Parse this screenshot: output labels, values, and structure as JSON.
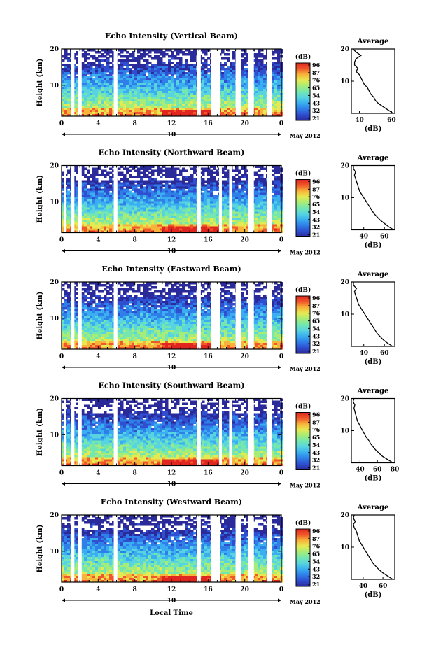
{
  "colors": {
    "colormap": [
      "#2a2a9a",
      "#2f4fd0",
      "#2f7fe8",
      "#3aaef0",
      "#57d4e0",
      "#74e7b0",
      "#a6ec78",
      "#e6ea52",
      "#f7b33a",
      "#f0572a",
      "#e0261e"
    ],
    "gap": "#ffffff",
    "axis": "#000000"
  },
  "footer": {
    "xlabel": "Local Time"
  },
  "chart_data": [
    {
      "type": "heatmap",
      "title": "Echo Intensity (Vertical Beam)",
      "ylabel": "Height (km)",
      "yticks": [
        10,
        20
      ],
      "ylim": [
        1.5,
        20
      ],
      "xticks": [
        "0",
        "4",
        "8",
        "12",
        "16",
        "20",
        "0"
      ],
      "xlim": [
        0,
        24
      ],
      "date_marker": "10",
      "date_label": "May 2012",
      "colorbar": {
        "unit": "(dB)",
        "ticks": [
          "96",
          "87",
          "76",
          "65",
          "54",
          "43",
          "32",
          "21"
        ]
      },
      "data_gaps_hours": [
        [
          1.0,
          1.4
        ],
        [
          1.8,
          2.2
        ],
        [
          5.7,
          6.1
        ],
        [
          14.8,
          15.2
        ],
        [
          16.3,
          17.3
        ],
        [
          19.0,
          19.6
        ],
        [
          20.4,
          21.0
        ],
        [
          22.4,
          23.0
        ]
      ],
      "profile": {
        "title": "Average",
        "xlabel": "(dB)",
        "xticks": [
          40,
          60
        ],
        "xlim": [
          35,
          62
        ],
        "yticks": [
          10,
          20
        ],
        "ylim": [
          0,
          20
        ],
        "heights": [
          0,
          1,
          2,
          3,
          4,
          5,
          6,
          7,
          8,
          9,
          10,
          11,
          12,
          13,
          14,
          15,
          16,
          17,
          18,
          19,
          20
        ],
        "values": [
          61,
          58,
          55,
          52,
          50,
          49,
          47,
          46,
          45,
          43,
          42,
          41,
          40,
          38,
          39,
          37,
          37,
          38,
          41,
          38,
          36
        ]
      }
    },
    {
      "type": "heatmap",
      "title": "Echo Intensity (Northward Beam)",
      "ylabel": "Height (km)",
      "yticks": [
        10,
        20
      ],
      "ylim": [
        1.5,
        20
      ],
      "xticks": [
        "0",
        "4",
        "8",
        "12",
        "16",
        "20",
        "0"
      ],
      "xlim": [
        0,
        24
      ],
      "date_marker": "10",
      "date_label": "May 2012",
      "colorbar": {
        "unit": "(dB)",
        "ticks": [
          "96",
          "87",
          "76",
          "65",
          "54",
          "43",
          "32",
          "21"
        ]
      },
      "data_gaps_hours": [
        [
          0.3,
          0.5
        ],
        [
          1.0,
          1.4
        ],
        [
          1.8,
          2.2
        ],
        [
          5.7,
          6.1
        ],
        [
          14.8,
          15.2
        ],
        [
          17.2,
          17.5
        ],
        [
          18.3,
          18.6
        ],
        [
          20.4,
          21.0
        ],
        [
          22.4,
          23.0
        ]
      ],
      "profile": {
        "title": "Average",
        "xlabel": "(dB)",
        "xticks": [
          40,
          60
        ],
        "xlim": [
          28,
          70
        ],
        "yticks": [
          10,
          20
        ],
        "ylim": [
          0,
          20
        ],
        "heights": [
          0,
          1,
          2,
          3,
          4,
          5,
          6,
          7,
          8,
          9,
          10,
          11,
          12,
          13,
          14,
          15,
          16,
          17,
          18,
          19,
          20
        ],
        "values": [
          69,
          64,
          60,
          56,
          53,
          50,
          48,
          46,
          44,
          42,
          40,
          38,
          36,
          35,
          34,
          33,
          32,
          31,
          32,
          30,
          30
        ]
      }
    },
    {
      "type": "heatmap",
      "title": "Echo Intensity (Eastward Beam)",
      "ylabel": "Height (km)",
      "yticks": [
        10,
        20
      ],
      "ylim": [
        1.5,
        20
      ],
      "xticks": [
        "0",
        "4",
        "8",
        "12",
        "16",
        "20",
        "0"
      ],
      "xlim": [
        0,
        24
      ],
      "date_marker": "10",
      "date_label": "May 2012",
      "colorbar": {
        "unit": "(dB)",
        "ticks": [
          "96",
          "87",
          "76",
          "65",
          "54",
          "43",
          "32",
          "21"
        ]
      },
      "data_gaps_hours": [
        [
          1.0,
          1.4
        ],
        [
          1.8,
          2.2
        ],
        [
          5.7,
          6.1
        ],
        [
          14.8,
          15.2
        ],
        [
          16.3,
          17.3
        ],
        [
          19.0,
          19.6
        ],
        [
          20.4,
          21.0
        ],
        [
          22.4,
          23.0
        ]
      ],
      "profile": {
        "title": "Average",
        "xlabel": "(dB)",
        "xticks": [
          40,
          60
        ],
        "xlim": [
          28,
          70
        ],
        "yticks": [
          10,
          20
        ],
        "ylim": [
          0,
          20
        ],
        "heights": [
          0,
          1,
          2,
          3,
          4,
          5,
          6,
          7,
          8,
          9,
          10,
          11,
          12,
          13,
          14,
          15,
          16,
          17,
          18,
          19,
          20
        ],
        "values": [
          68,
          63,
          59,
          56,
          53,
          51,
          49,
          47,
          45,
          43,
          41,
          39,
          37,
          35,
          34,
          33,
          32,
          31,
          33,
          30,
          30
        ]
      }
    },
    {
      "type": "heatmap",
      "title": "Echo Intensity (Southward Beam)",
      "ylabel": "Height (km)",
      "yticks": [
        10,
        20
      ],
      "ylim": [
        1.5,
        20
      ],
      "xticks": [
        "0",
        "4",
        "8",
        "12",
        "16",
        "20",
        "0"
      ],
      "xlim": [
        0,
        24
      ],
      "date_marker": "10",
      "date_label": "May 2012",
      "colorbar": {
        "unit": "(dB)",
        "ticks": [
          "96",
          "87",
          "76",
          "65",
          "54",
          "43",
          "32",
          "21"
        ]
      },
      "data_gaps_hours": [
        [
          0.3,
          0.5
        ],
        [
          1.0,
          1.4
        ],
        [
          1.8,
          2.2
        ],
        [
          5.7,
          6.1
        ],
        [
          14.8,
          15.2
        ],
        [
          17.2,
          17.5
        ],
        [
          18.3,
          18.6
        ],
        [
          20.4,
          21.0
        ],
        [
          22.4,
          23.0
        ]
      ],
      "profile": {
        "title": "Average",
        "xlabel": "(dB)",
        "xticks": [
          40,
          60,
          80
        ],
        "xlim": [
          30,
          80
        ],
        "yticks": [
          10,
          20
        ],
        "ylim": [
          0,
          20
        ],
        "heights": [
          0,
          1,
          2,
          3,
          4,
          5,
          6,
          7,
          8,
          9,
          10,
          11,
          12,
          13,
          14,
          15,
          16,
          17,
          18,
          19,
          20
        ],
        "values": [
          78,
          72,
          66,
          62,
          58,
          55,
          52,
          50,
          47,
          45,
          43,
          41,
          39,
          37,
          36,
          35,
          34,
          33,
          34,
          32,
          33
        ]
      }
    },
    {
      "type": "heatmap",
      "title": "Echo Intensity (Westward Beam)",
      "ylabel": "Height (km)",
      "yticks": [
        10,
        20
      ],
      "ylim": [
        1.5,
        20
      ],
      "xticks": [
        "0",
        "4",
        "8",
        "12",
        "16",
        "20",
        "0"
      ],
      "xlim": [
        0,
        24
      ],
      "date_marker": "10",
      "date_label": "May 2012",
      "colorbar": {
        "unit": "(dB)",
        "ticks": [
          "96",
          "87",
          "76",
          "65",
          "54",
          "43",
          "32",
          "21"
        ]
      },
      "data_gaps_hours": [
        [
          1.0,
          1.4
        ],
        [
          1.8,
          2.2
        ],
        [
          5.7,
          6.1
        ],
        [
          14.8,
          15.2
        ],
        [
          16.3,
          17.3
        ],
        [
          19.0,
          19.6
        ],
        [
          20.4,
          21.0
        ],
        [
          22.4,
          23.0
        ]
      ],
      "profile": {
        "title": "Average",
        "xlabel": "(dB)",
        "xticks": [
          40,
          60
        ],
        "xlim": [
          28,
          72
        ],
        "yticks": [
          10,
          20
        ],
        "ylim": [
          0,
          20
        ],
        "heights": [
          0,
          1,
          2,
          3,
          4,
          5,
          6,
          7,
          8,
          9,
          10,
          11,
          12,
          13,
          14,
          15,
          16,
          17,
          18,
          19,
          20
        ],
        "values": [
          70,
          65,
          60,
          56,
          53,
          50,
          48,
          46,
          44,
          42,
          40,
          38,
          36,
          35,
          34,
          33,
          31,
          30,
          32,
          30,
          31
        ]
      }
    }
  ]
}
